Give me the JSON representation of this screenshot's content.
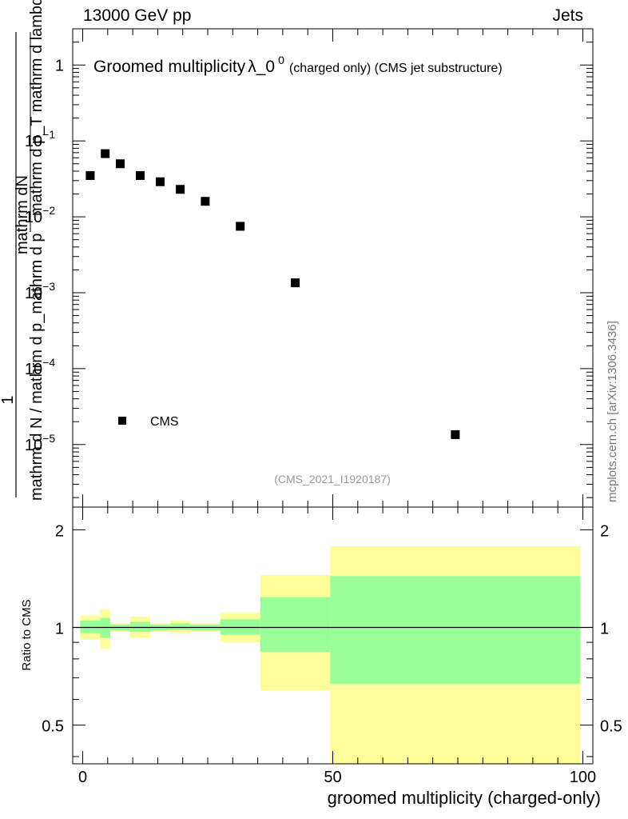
{
  "header": {
    "left": "13000 GeV pp",
    "right": "Jets"
  },
  "side_note": "mcplots.cern.ch [arXiv:1306.3436]",
  "chart_data": [
    {
      "type": "scatter",
      "title_main": "Groomed multiplicity",
      "title_symbol": "λ_0",
      "title_sup": "0",
      "title_suffix": "(charged only) (CMS jet substructure)",
      "ylabel_numerator": "1",
      "ylabel_num_line": "mathrm d N / mathrm d p_mathrm d p",
      "ylabel_den_line1": "mathrm dN",
      "ylabel_den_line2": "mathrm d p_T mathrm d lambda",
      "ylabel_full": "1/(mathrm d N / mathrm d p_mathrm d p) · mathrm d^2N / (mathrm d p_T mathrm d lambda)",
      "yscale": "log",
      "ylim": [
        1.5e-06,
        3.0
      ],
      "yticks": [
        {
          "v": 1,
          "label": "1"
        },
        {
          "v": 0.1,
          "label": "10",
          "exp": "−1"
        },
        {
          "v": 0.01,
          "label": "10",
          "exp": "−2"
        },
        {
          "v": 0.001,
          "label": "10",
          "exp": "−3"
        },
        {
          "v": 0.0001,
          "label": "10",
          "exp": "−4"
        },
        {
          "v": 1e-05,
          "label": "10",
          "exp": "−5"
        }
      ],
      "xlim": [
        -2,
        102
      ],
      "legend": {
        "label": "CMS",
        "placement": "bottom-left"
      },
      "watermark": "(CMS_2021_I1920187)",
      "series": [
        {
          "name": "CMS",
          "points": [
            {
              "x": 1.5,
              "y": 0.035
            },
            {
              "x": 4.5,
              "y": 0.068
            },
            {
              "x": 7.5,
              "y": 0.05
            },
            {
              "x": 11.5,
              "y": 0.035
            },
            {
              "x": 15.5,
              "y": 0.029
            },
            {
              "x": 19.5,
              "y": 0.023
            },
            {
              "x": 24.5,
              "y": 0.016
            },
            {
              "x": 31.5,
              "y": 0.0075
            },
            {
              "x": 42.5,
              "y": 0.00135
            },
            {
              "x": 74.5,
              "y": 1.35e-05
            }
          ]
        }
      ]
    },
    {
      "type": "area",
      "ylabel": "Ratio to CMS",
      "xlabel": "groomed multiplicity (charged-only)",
      "yscale": "log",
      "ylim": [
        0.38,
        2.35
      ],
      "xlim": [
        -2,
        102
      ],
      "xticks": [
        {
          "v": 0,
          "label": "0"
        },
        {
          "v": 50,
          "label": "50"
        },
        {
          "v": 100,
          "label": "100"
        }
      ],
      "yticks": [
        {
          "v": 0.5,
          "label": "0.5"
        },
        {
          "v": 1,
          "label": "1"
        },
        {
          "v": 2,
          "label": "2"
        }
      ],
      "reference_line": 1,
      "bands": [
        {
          "x0": -0.5,
          "x1": 3.5,
          "inner": [
            0.96,
            1.05
          ],
          "outer": [
            0.92,
            1.09
          ]
        },
        {
          "x0": 3.5,
          "x1": 5.5,
          "inner": [
            0.93,
            1.07
          ],
          "outer": [
            0.86,
            1.14
          ]
        },
        {
          "x0": 5.5,
          "x1": 9.5,
          "inner": [
            0.98,
            1.02
          ],
          "outer": [
            0.97,
            1.03
          ]
        },
        {
          "x0": 9.5,
          "x1": 13.5,
          "inner": [
            0.97,
            1.04
          ],
          "outer": [
            0.93,
            1.08
          ]
        },
        {
          "x0": 13.5,
          "x1": 17.5,
          "inner": [
            0.98,
            1.02
          ],
          "outer": [
            0.97,
            1.03
          ]
        },
        {
          "x0": 17.5,
          "x1": 21.5,
          "inner": [
            0.98,
            1.03
          ],
          "outer": [
            0.96,
            1.05
          ]
        },
        {
          "x0": 21.5,
          "x1": 27.5,
          "inner": [
            0.98,
            1.02
          ],
          "outer": [
            0.97,
            1.03
          ]
        },
        {
          "x0": 27.5,
          "x1": 35.5,
          "inner": [
            0.95,
            1.06
          ],
          "outer": [
            0.9,
            1.11
          ]
        },
        {
          "x0": 35.5,
          "x1": 49.5,
          "inner": [
            0.84,
            1.24
          ],
          "outer": [
            0.64,
            1.45
          ]
        },
        {
          "x0": 49.5,
          "x1": 99.5,
          "inner": [
            0.67,
            1.44
          ],
          "outer": [
            0.38,
            1.78
          ]
        }
      ]
    }
  ]
}
